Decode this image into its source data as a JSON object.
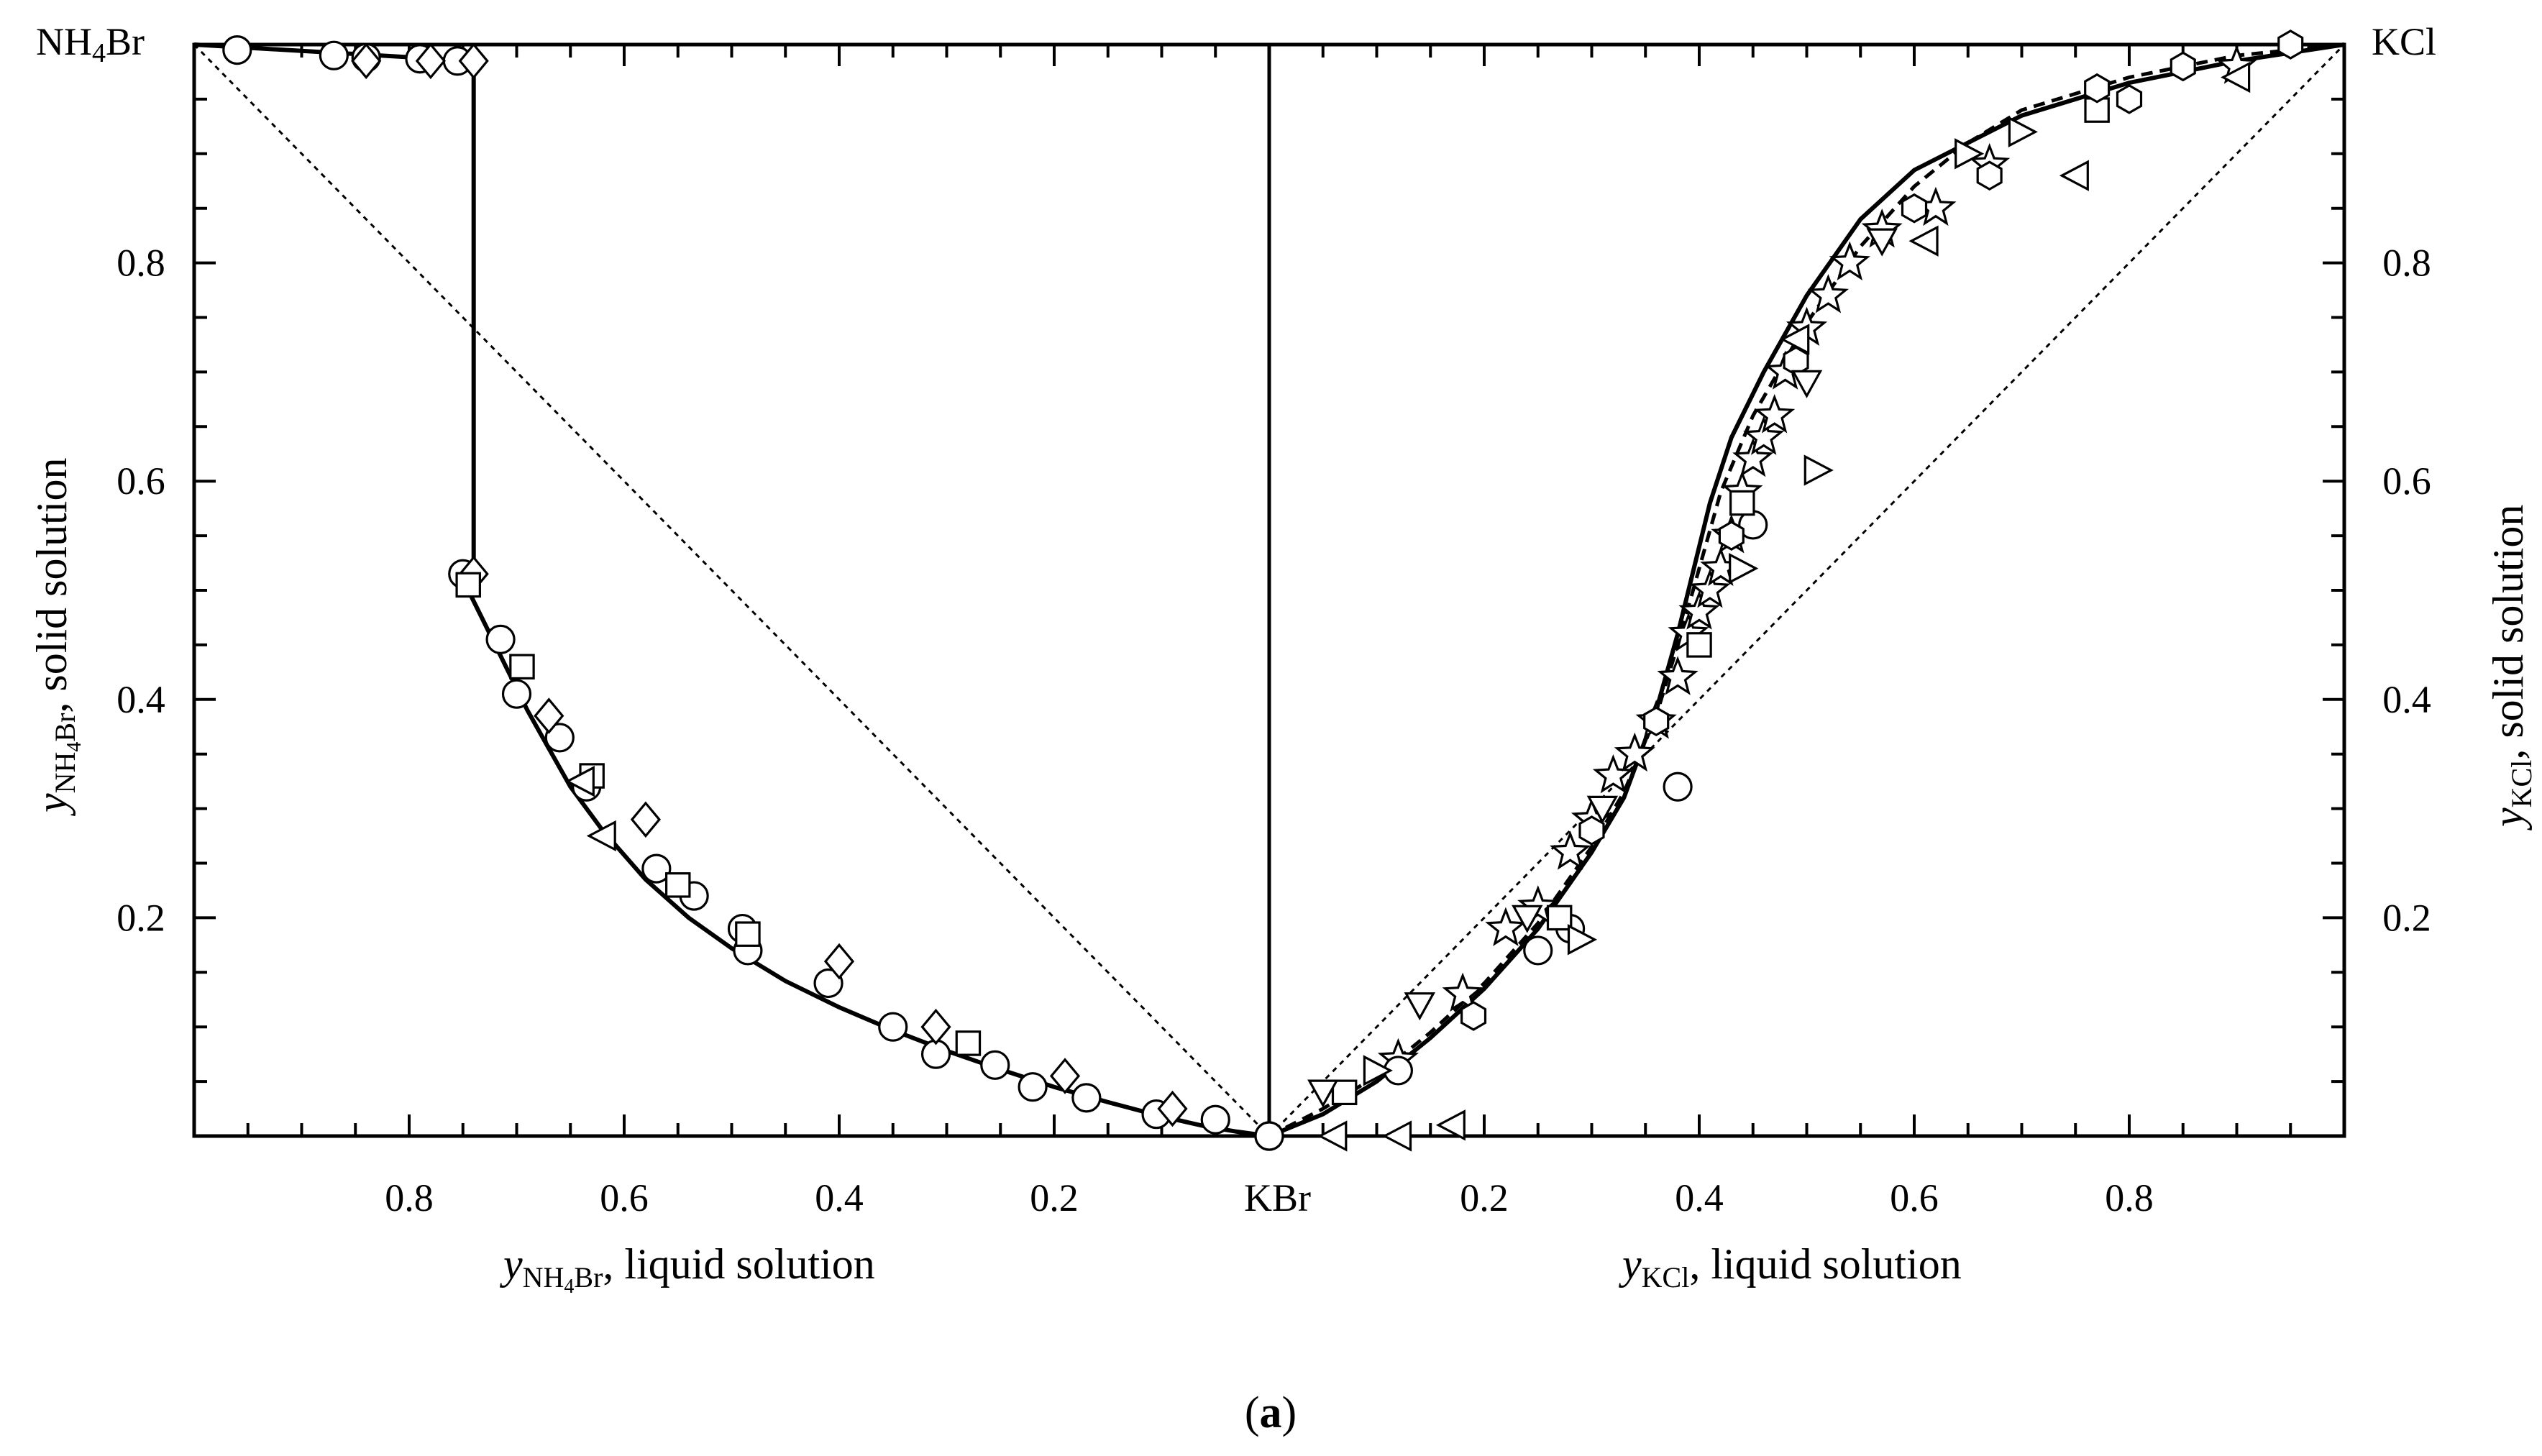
{
  "chart_data": {
    "type": "scatter",
    "caption": "(a)",
    "center_label": "KBr",
    "left_panel": {
      "corner_label": "NH4Br",
      "xlabel": "y NH4Br, liquid solution",
      "ylabel": "y NH4Br, solid solution",
      "xlim": [
        1.0,
        0.0
      ],
      "ylim": [
        0.0,
        1.0
      ],
      "x_ticks": [
        "0.8",
        "0.6",
        "0.4",
        "0.2"
      ],
      "y_ticks": [
        "0.8",
        "0.6",
        "0.4",
        "0.2"
      ],
      "model_curve": {
        "name": "model",
        "x": [
          0.75,
          0.745,
          0.73,
          0.71,
          0.69,
          0.67,
          0.65,
          0.62,
          0.58,
          0.54,
          0.5,
          0.45,
          0.4,
          0.35,
          0.3,
          0.25,
          0.2,
          0.15,
          0.1,
          0.06,
          0.03,
          0.0
        ],
        "y": [
          0.51,
          0.5,
          0.47,
          0.43,
          0.39,
          0.355,
          0.32,
          0.28,
          0.235,
          0.2,
          0.172,
          0.142,
          0.118,
          0.097,
          0.078,
          0.061,
          0.045,
          0.031,
          0.018,
          0.009,
          0.004,
          0.0
        ]
      },
      "miscibility_gap": {
        "x": 0.74,
        "y_low": 0.51,
        "y_high": 0.985
      },
      "top_segment": {
        "x": [
          1.0,
          0.74
        ],
        "y": [
          1.0,
          0.985
        ]
      },
      "series": [
        {
          "name": "circles",
          "marker": "circle",
          "x": [
            0.96,
            0.87,
            0.84,
            0.79,
            0.755,
            0.75,
            0.715,
            0.7,
            0.66,
            0.635,
            0.57,
            0.535,
            0.49,
            0.485,
            0.41,
            0.35,
            0.31,
            0.255,
            0.22,
            0.17,
            0.105,
            0.05,
            0.0
          ],
          "y": [
            0.995,
            0.99,
            0.988,
            0.987,
            0.985,
            0.515,
            0.455,
            0.405,
            0.365,
            0.32,
            0.245,
            0.22,
            0.19,
            0.17,
            0.14,
            0.1,
            0.075,
            0.065,
            0.045,
            0.035,
            0.02,
            0.015,
            0.0
          ]
        },
        {
          "name": "diamonds",
          "marker": "diamond",
          "x": [
            0.84,
            0.78,
            0.74,
            0.74,
            0.67,
            0.58,
            0.4,
            0.31,
            0.19,
            0.09
          ],
          "y": [
            0.985,
            0.985,
            0.985,
            0.515,
            0.385,
            0.29,
            0.16,
            0.1,
            0.055,
            0.025
          ]
        },
        {
          "name": "squares",
          "marker": "square",
          "x": [
            0.745,
            0.695,
            0.63,
            0.55,
            0.485,
            0.28
          ],
          "y": [
            0.505,
            0.43,
            0.33,
            0.23,
            0.185,
            0.085
          ]
        },
        {
          "name": "left-triangles",
          "marker": "triangle-left",
          "x": [
            0.64,
            0.62
          ],
          "y": [
            0.325,
            0.275
          ]
        }
      ]
    },
    "right_panel": {
      "corner_label": "KCl",
      "xlabel": "y KCl, liquid solution",
      "ylabel": "y KCl, solid solution",
      "xlim": [
        0.0,
        1.0
      ],
      "ylim": [
        0.0,
        1.0
      ],
      "x_ticks": [
        "0.2",
        "0.4",
        "0.6",
        "0.8"
      ],
      "y_ticks": [
        "0.8",
        "0.6",
        "0.4",
        "0.2"
      ],
      "model_curve": {
        "name": "model",
        "x": [
          0.0,
          0.05,
          0.1,
          0.15,
          0.2,
          0.25,
          0.3,
          0.33,
          0.36,
          0.38,
          0.39,
          0.4,
          0.41,
          0.43,
          0.46,
          0.5,
          0.55,
          0.6,
          0.65,
          0.7,
          0.8,
          0.9,
          1.0
        ],
        "y": [
          0.0,
          0.02,
          0.05,
          0.09,
          0.135,
          0.19,
          0.26,
          0.31,
          0.39,
          0.46,
          0.5,
          0.54,
          0.58,
          0.64,
          0.7,
          0.77,
          0.84,
          0.885,
          0.91,
          0.935,
          0.965,
          0.985,
          1.0
        ]
      },
      "dashed_curve": {
        "name": "model (dashed)",
        "x": [
          0.0,
          0.05,
          0.1,
          0.15,
          0.2,
          0.25,
          0.3,
          0.33,
          0.36,
          0.38,
          0.4,
          0.42,
          0.45,
          0.5,
          0.55,
          0.6,
          0.65,
          0.7,
          0.8,
          0.9,
          1.0
        ],
        "y": [
          0.0,
          0.025,
          0.055,
          0.095,
          0.14,
          0.195,
          0.265,
          0.315,
          0.385,
          0.45,
          0.52,
          0.59,
          0.66,
          0.745,
          0.815,
          0.87,
          0.91,
          0.94,
          0.97,
          0.99,
          1.0
        ]
      },
      "series": [
        {
          "name": "stars",
          "marker": "star",
          "x": [
            0.12,
            0.18,
            0.22,
            0.25,
            0.28,
            0.3,
            0.32,
            0.34,
            0.36,
            0.38,
            0.39,
            0.4,
            0.41,
            0.42,
            0.43,
            0.44,
            0.45,
            0.46,
            0.47,
            0.48,
            0.5,
            0.52,
            0.54,
            0.57,
            0.62,
            0.67,
            0.9
          ],
          "y": [
            0.07,
            0.13,
            0.19,
            0.21,
            0.26,
            0.29,
            0.33,
            0.35,
            0.38,
            0.42,
            0.46,
            0.48,
            0.5,
            0.52,
            0.55,
            0.59,
            0.62,
            0.64,
            0.66,
            0.7,
            0.74,
            0.77,
            0.8,
            0.83,
            0.85,
            0.89,
            0.98
          ]
        },
        {
          "name": "circles",
          "marker": "circle",
          "x": [
            0.0,
            0.12,
            0.25,
            0.28,
            0.38,
            0.45
          ],
          "y": [
            0.0,
            0.06,
            0.17,
            0.19,
            0.32,
            0.56
          ]
        },
        {
          "name": "squares",
          "marker": "square",
          "x": [
            0.07,
            0.27,
            0.4,
            0.44,
            0.77
          ],
          "y": [
            0.04,
            0.2,
            0.45,
            0.58,
            0.94
          ]
        },
        {
          "name": "hexagons",
          "marker": "hexagon",
          "x": [
            0.19,
            0.3,
            0.36,
            0.43,
            0.49,
            0.6,
            0.67,
            0.77,
            0.8,
            0.85,
            0.95
          ],
          "y": [
            0.11,
            0.28,
            0.38,
            0.55,
            0.71,
            0.85,
            0.88,
            0.96,
            0.95,
            0.98,
            1.0
          ]
        },
        {
          "name": "down-triangles",
          "marker": "triangle-down",
          "x": [
            0.05,
            0.14,
            0.24,
            0.31,
            0.5,
            0.57
          ],
          "y": [
            0.04,
            0.12,
            0.2,
            0.3,
            0.69,
            0.82
          ]
        },
        {
          "name": "right-triangles",
          "marker": "triangle-right",
          "x": [
            0.1,
            0.29,
            0.44,
            0.51,
            0.65,
            0.7
          ],
          "y": [
            0.06,
            0.18,
            0.52,
            0.61,
            0.9,
            0.92
          ]
        },
        {
          "name": "left-triangles",
          "marker": "triangle-left",
          "x": [
            0.06,
            0.12,
            0.17,
            0.49,
            0.61,
            0.75,
            0.9
          ],
          "y": [
            0.0,
            0.0,
            0.01,
            0.73,
            0.82,
            0.88,
            0.97
          ]
        }
      ]
    }
  }
}
